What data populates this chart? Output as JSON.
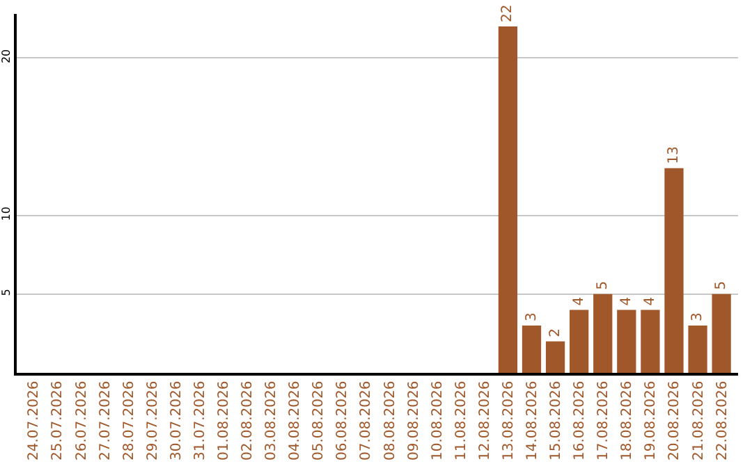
{
  "chart_data": {
    "type": "bar",
    "categories": [
      "24.07.2026",
      "25.07.2026",
      "26.07.2026",
      "27.07.2026",
      "28.07.2026",
      "29.07.2026",
      "30.07.2026",
      "31.07.2026",
      "01.08.2026",
      "02.08.2026",
      "03.08.2026",
      "04.08.2026",
      "05.08.2026",
      "06.08.2026",
      "07.08.2026",
      "08.08.2026",
      "09.08.2026",
      "10.08.2026",
      "11.08.2026",
      "12.08.2026",
      "13.08.2026",
      "14.08.2026",
      "15.08.2026",
      "16.08.2026",
      "17.08.2026",
      "18.08.2026",
      "19.08.2026",
      "20.08.2026",
      "21.08.2026",
      "22.08.2026"
    ],
    "values": [
      0,
      0,
      0,
      0,
      0,
      0,
      0,
      0,
      0,
      0,
      0,
      0,
      0,
      0,
      0,
      0,
      0,
      0,
      0,
      0,
      22,
      3,
      2,
      4,
      5,
      4,
      4,
      13,
      3,
      5
    ],
    "value_labels": [
      null,
      null,
      null,
      null,
      null,
      null,
      null,
      null,
      null,
      null,
      null,
      null,
      null,
      null,
      null,
      null,
      null,
      null,
      null,
      null,
      "22",
      "3",
      "2",
      "4",
      "5",
      "4",
      "4",
      "13",
      "3",
      "5"
    ],
    "color": "#a0582a",
    "ylim": [
      0,
      22.8
    ],
    "yticks": [
      5,
      10,
      20
    ],
    "grid": "y",
    "legend": false
  }
}
